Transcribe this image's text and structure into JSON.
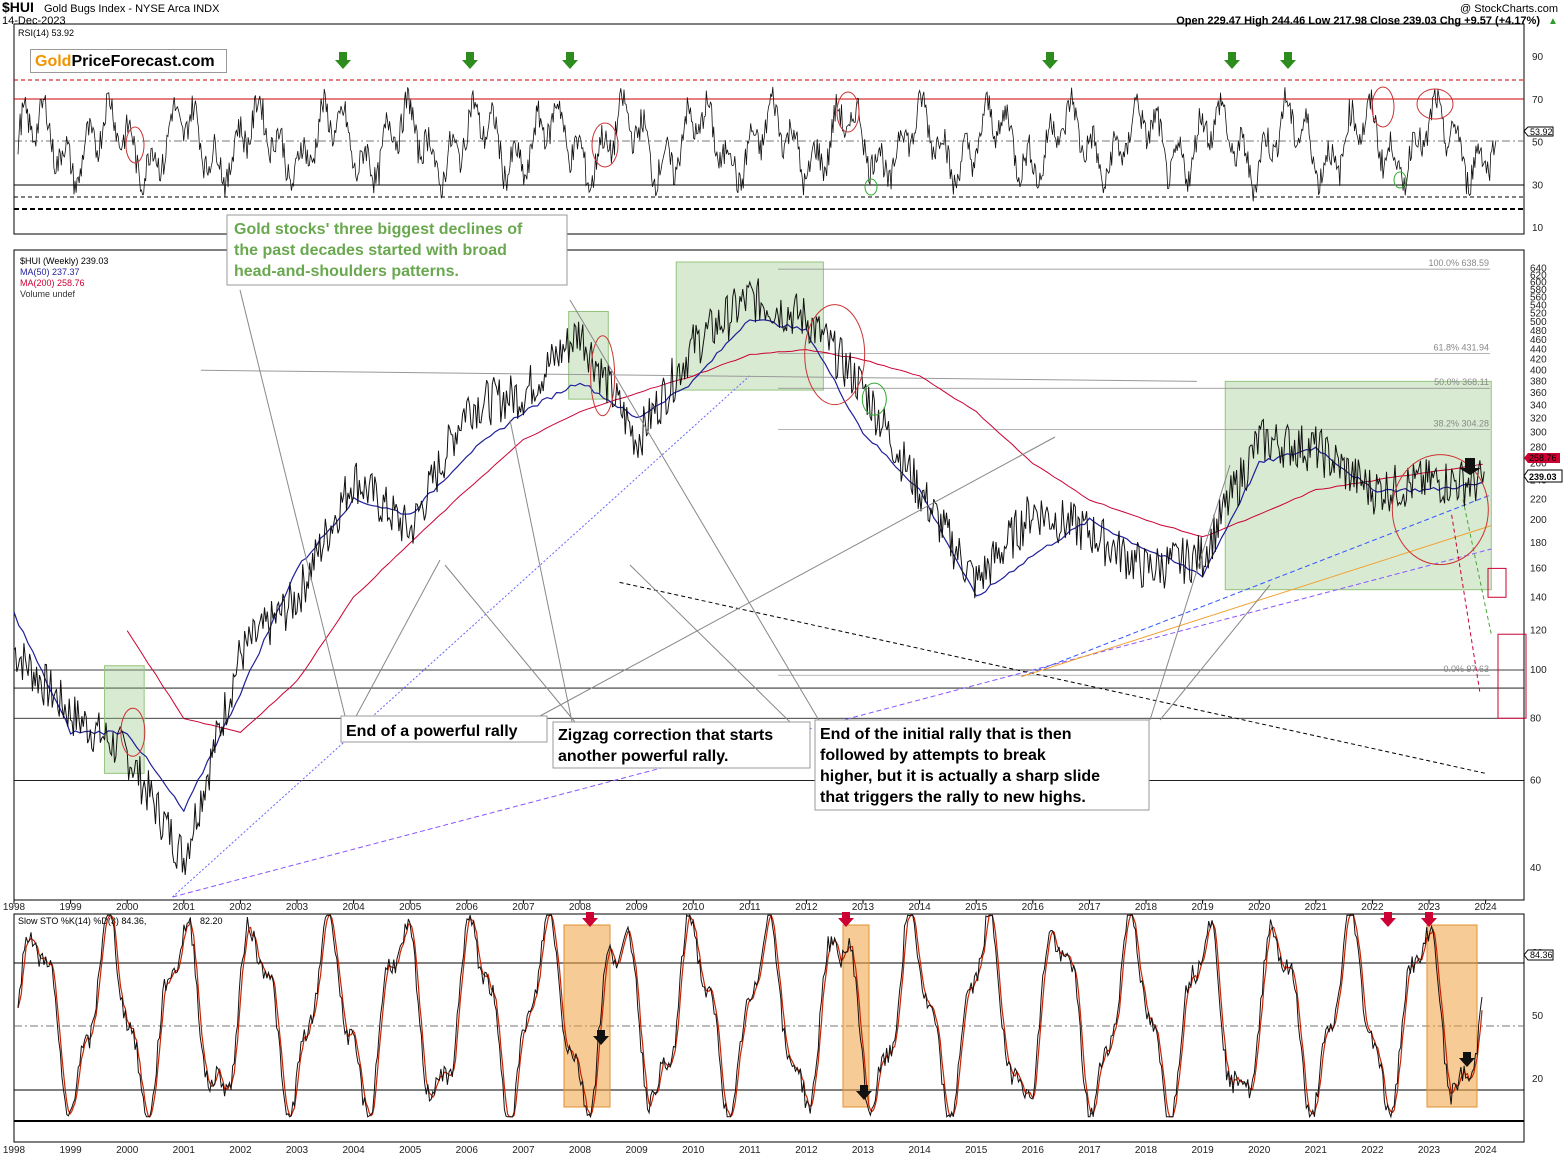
{
  "header": {
    "symbol": "$HUI",
    "name": "Gold Bugs Index - NYSE Arca INDX",
    "date": "14-Dec-2023",
    "credit": "@ StockCharts.com",
    "ohlc": "Open 229.47  High 244.46  Low 217.98  Close 239.03  Chg +9.57 (+4.17%)",
    "ohlc_arrow": "▲"
  },
  "logo": {
    "part1": "Gold",
    "part2": "PriceForecast.com"
  },
  "rsi_panel": {
    "label": "RSI(14) 53.92",
    "ticks": [
      "90",
      "70",
      "50",
      "30",
      "10"
    ],
    "last_value": "53.92",
    "overbought": 70,
    "oversold": 30
  },
  "price_panel": {
    "legend": [
      {
        "text": "$HUI (Weekly) 239.03",
        "color": "#000000"
      },
      {
        "text": "MA(50) 237.37",
        "color": "#1f1f99"
      },
      {
        "text": "MA(200) 258.76",
        "color": "#cc0033"
      },
      {
        "text": "Volume undef",
        "color": "#333333"
      }
    ],
    "price_ticks": [
      "640",
      "620",
      "600",
      "580",
      "560",
      "540",
      "520",
      "500",
      "480",
      "460",
      "440",
      "420",
      "400",
      "380",
      "360",
      "340",
      "320",
      "300",
      "280",
      "260",
      "240",
      "220",
      "200",
      "180",
      "160",
      "140",
      "120",
      "100",
      "80",
      "60",
      "40"
    ],
    "fib_levels": [
      "100.0% 638.59",
      "61.8% 431.94",
      "50.0% 368.11",
      "38.2% 304.28",
      "0.0% 97.63"
    ],
    "last_price_tag": "239.03",
    "ma200_tag": "258.76"
  },
  "years": [
    "1998",
    "1999",
    "2000",
    "2001",
    "2002",
    "2003",
    "2004",
    "2005",
    "2006",
    "2007",
    "2008",
    "2009",
    "2010",
    "2011",
    "2012",
    "2013",
    "2014",
    "2015",
    "2016",
    "2017",
    "2018",
    "2019",
    "2020",
    "2021",
    "2022",
    "2023",
    "2024"
  ],
  "annotations": {
    "green_box": [
      "Gold stocks' three biggest declines of",
      "the past decades started with broad",
      "head-and-shoulders patterns."
    ],
    "end_rally": "End of a powerful rally",
    "zigzag": [
      "Zigzag correction that starts",
      "another powerful rally."
    ],
    "initial_rally": [
      "End of the initial rally that is then",
      "followed by attempts to break",
      "higher, but it is actually a sharp slide",
      "that triggers the rally to new highs."
    ]
  },
  "sto_panel": {
    "label_main": "Slow STO %K(14) %D(3) 84.36,",
    "label_d": "82.20",
    "ticks": [
      "80",
      "50",
      "20"
    ],
    "last_value": "84.36"
  },
  "chart_data": {
    "type": "line",
    "title": "$HUI Gold Bugs Index - NYSE Arca INDX",
    "x": [
      "1998",
      "1999",
      "2000",
      "2001",
      "2002",
      "2003",
      "2004",
      "2005",
      "2006",
      "2007",
      "2008",
      "2009",
      "2010",
      "2011",
      "2012",
      "2013",
      "2014",
      "2015",
      "2016",
      "2017",
      "2018",
      "2019",
      "2020",
      "2021",
      "2022",
      "2023",
      "2024"
    ],
    "series": [
      {
        "name": "$HUI (Weekly)",
        "values": [
          110,
          82,
          68,
          42,
          108,
          140,
          245,
          190,
          340,
          360,
          480,
          290,
          450,
          560,
          510,
          370,
          230,
          150,
          210,
          190,
          160,
          170,
          290,
          280,
          230,
          240,
          239
        ]
      },
      {
        "name": "MA(50)",
        "values": [
          130,
          75,
          75,
          52,
          90,
          160,
          220,
          205,
          270,
          330,
          380,
          320,
          380,
          510,
          480,
          300,
          230,
          140,
          170,
          200,
          175,
          155,
          260,
          280,
          230,
          230,
          237
        ]
      },
      {
        "name": "MA(200)",
        "values": [
          null,
          null,
          120,
          80,
          75,
          95,
          140,
          180,
          230,
          290,
          330,
          360,
          390,
          430,
          440,
          420,
          390,
          330,
          260,
          220,
          200,
          185,
          205,
          230,
          240,
          250,
          259
        ]
      }
    ],
    "ylabel": "",
    "ylim": [
      35,
      660
    ],
    "y_scale": "log"
  }
}
